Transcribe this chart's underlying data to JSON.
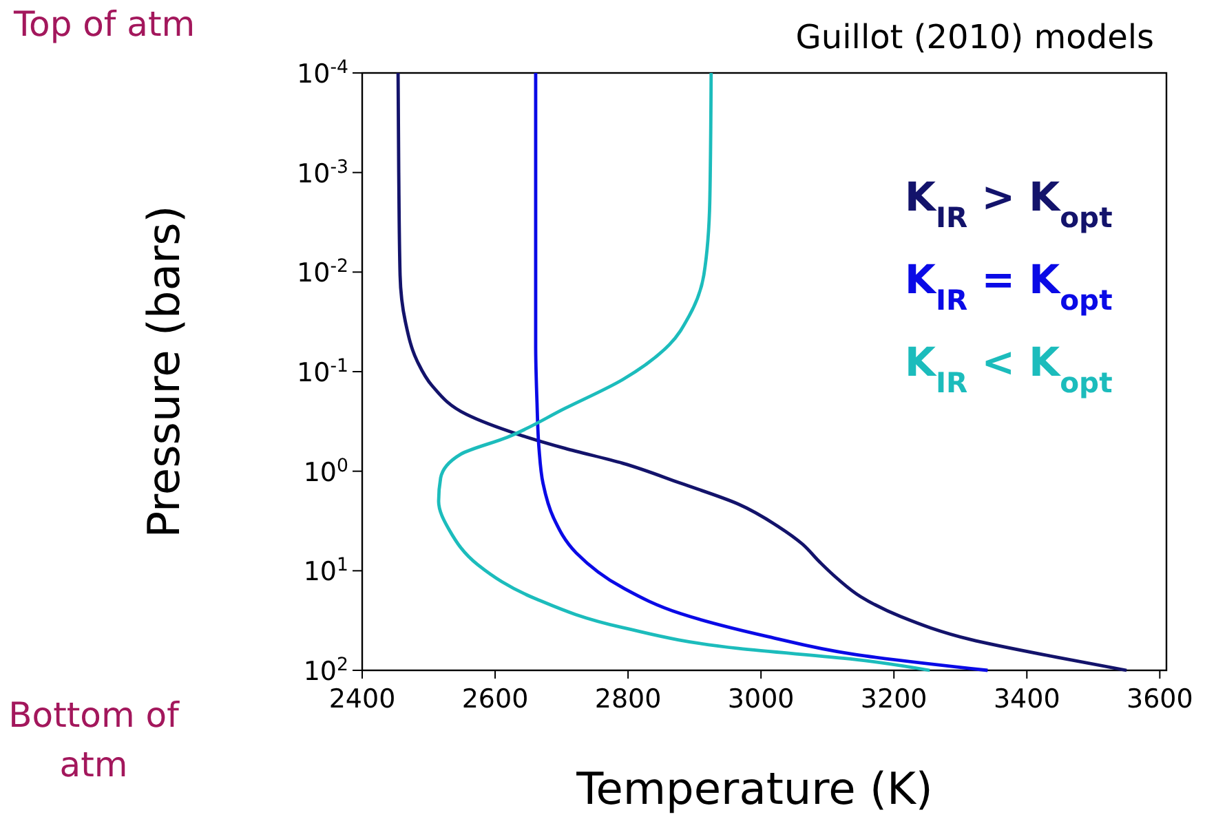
{
  "chart_data": {
    "type": "line",
    "title": "Guillot (2010) models",
    "xlabel": "Temperature (K)",
    "ylabel": "Pressure (bars)",
    "log": "y",
    "grid": false,
    "legend": "top right",
    "marker": "none",
    "line_style": "solid",
    "xlim": [
      2400,
      3610
    ],
    "xticks": [
      2400,
      2600,
      2800,
      3000,
      3200,
      3400,
      3600
    ],
    "ylim": [
      100,
      0.0001
    ],
    "yticks": [
      {
        "value": 0.0001,
        "label": "10$^{-4}$"
      },
      {
        "value": 0.001,
        "label": "10$^{-3}$"
      },
      {
        "value": 0.01,
        "label": "10$^{-2}$"
      },
      {
        "value": 0.1,
        "label": "10$^{-1}$"
      },
      {
        "value": 1,
        "label": "10$^{0}$"
      },
      {
        "value": 10,
        "label": "10$^{1}$"
      },
      {
        "value": 100,
        "label": "10$^{2}$"
      }
    ],
    "annotations": [
      "Top of atm",
      "Bottom of atm"
    ],
    "series": [
      {
        "name": "K$_{IR}$ > K$_{opt}$",
        "color": "#13136b",
        "x": [
          2454,
          2455,
          2457,
          2465,
          2483,
          2505,
          2557,
          2635,
          2705,
          2792,
          2879,
          2966,
          3027,
          3062,
          3088,
          3115,
          3150,
          3210,
          3315,
          3446,
          3550
        ],
        "values": [
          0.0001,
          0.001,
          0.0107,
          0.0316,
          0.079,
          0.138,
          0.269,
          0.427,
          0.589,
          0.832,
          1.32,
          2.14,
          3.63,
          5.37,
          8.13,
          12.0,
          18.2,
          28.8,
          49.0,
          74.1,
          100
        ]
      },
      {
        "name": "K$_{IR}$ = K$_{opt}$",
        "color": "#0a0ae6",
        "x": [
          2661,
          2661,
          2663,
          2666,
          2672,
          2688,
          2722,
          2792,
          2879,
          3010,
          3141,
          3341
        ],
        "values": [
          0.0001,
          0.0537,
          0.204,
          0.589,
          1.32,
          2.95,
          6.61,
          14.8,
          26.9,
          45.7,
          69.2,
          100
        ]
      },
      {
        "name": "K$_{IR}$ < K$_{opt}$",
        "color": "#1cbcbc",
        "x": [
          2925,
          2923,
          2914,
          2892,
          2862,
          2792,
          2705,
          2618,
          2548,
          2518,
          2515,
          2531,
          2574,
          2661,
          2792,
          2966,
          3141,
          3254
        ],
        "values": [
          0.0001,
          0.0019,
          0.0107,
          0.0275,
          0.0537,
          0.12,
          0.234,
          0.457,
          0.676,
          1.17,
          2.0,
          3.89,
          8.71,
          19.1,
          37.2,
          60.3,
          77.6,
          100
        ]
      }
    ]
  }
}
